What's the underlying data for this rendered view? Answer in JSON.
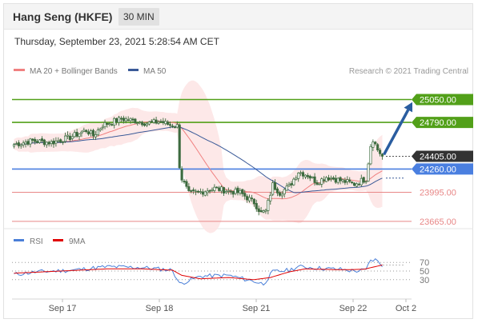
{
  "header": {
    "title": "Hang Seng (HKFE)",
    "timeframe": "30 MIN"
  },
  "datetime": "Thursday, September 23, 2021 5:28:54 AM CET",
  "legend": {
    "ma20_bb_label": "MA 20 + Bollinger Bands",
    "ma50_label": "MA 50",
    "copyright": "Research © 2021 Trading Central"
  },
  "rsi_legend": {
    "rsi_label": "RSI",
    "ma9_label": "9MA"
  },
  "colors": {
    "candle": "#3d6b3f",
    "ma20": "#f08080",
    "ma50": "#3a5a98",
    "bollinger_fill": "#fde4e4",
    "resistance": "#52a019",
    "support": "#e88787",
    "pivot": "#4a7fe0",
    "current": "#333333",
    "arrow": "#2a5da0",
    "rsi": "#4a7fd8",
    "rsi_ma": "#e00000"
  },
  "chart_data": [
    {
      "type": "candlestick",
      "x_ticks": [
        "Sep 17",
        "Sep 18",
        "Sep 21",
        "Sep 22",
        "Oct 2"
      ],
      "ylim": [
        23600,
        25300
      ],
      "price_levels": [
        {
          "value": 25050,
          "label": "25050.00",
          "kind": "resistance"
        },
        {
          "value": 24790,
          "label": "24790.00",
          "kind": "resistance"
        },
        {
          "value": 24405,
          "label": "24405.00",
          "kind": "current"
        },
        {
          "value": 24260,
          "label": "24260.00",
          "kind": "pivot"
        },
        {
          "value": 23995,
          "label": "23995.00",
          "kind": "support"
        },
        {
          "value": 23665,
          "label": "23665.00",
          "kind": "support"
        }
      ],
      "close_anchors": [
        [
          0,
          24540
        ],
        [
          8,
          24580
        ],
        [
          16,
          24560
        ],
        [
          24,
          24620
        ],
        [
          31,
          24700
        ],
        [
          34,
          24640
        ],
        [
          38,
          24760
        ],
        [
          46,
          24830
        ],
        [
          52,
          24810
        ],
        [
          57,
          24780
        ],
        [
          63,
          24800
        ],
        [
          67,
          24760
        ],
        [
          70,
          24750
        ],
        [
          71,
          24300
        ],
        [
          72,
          24150
        ],
        [
          75,
          23980
        ],
        [
          80,
          24000
        ],
        [
          86,
          24040
        ],
        [
          92,
          24010
        ],
        [
          97,
          23990
        ],
        [
          103,
          23880
        ],
        [
          106,
          23760
        ],
        [
          108,
          23780
        ],
        [
          111,
          24080
        ],
        [
          114,
          23990
        ],
        [
          118,
          24060
        ],
        [
          122,
          24230
        ],
        [
          126,
          24190
        ],
        [
          130,
          24110
        ],
        [
          134,
          24170
        ],
        [
          140,
          24130
        ],
        [
          146,
          24090
        ],
        [
          151,
          24150
        ],
        [
          153,
          24530
        ],
        [
          154,
          24600
        ],
        [
          156,
          24480
        ],
        [
          158,
          24405
        ]
      ],
      "arrow_target": 25020
    },
    {
      "type": "line",
      "name": "RSI",
      "ylim": [
        0,
        100
      ],
      "y_ticks": [
        70,
        50,
        30
      ],
      "rsi_anchors": [
        [
          0,
          42
        ],
        [
          10,
          48
        ],
        [
          25,
          52
        ],
        [
          40,
          60
        ],
        [
          55,
          58
        ],
        [
          68,
          52
        ],
        [
          71,
          20
        ],
        [
          74,
          26
        ],
        [
          80,
          38
        ],
        [
          92,
          40
        ],
        [
          103,
          26
        ],
        [
          107,
          20
        ],
        [
          111,
          48
        ],
        [
          118,
          52
        ],
        [
          122,
          60
        ],
        [
          128,
          58
        ],
        [
          135,
          55
        ],
        [
          140,
          54
        ],
        [
          146,
          50
        ],
        [
          151,
          52
        ],
        [
          153,
          75
        ],
        [
          155,
          76
        ],
        [
          158,
          64
        ]
      ],
      "ma_anchors": [
        [
          0,
          45
        ],
        [
          20,
          50
        ],
        [
          40,
          55
        ],
        [
          55,
          55
        ],
        [
          68,
          52
        ],
        [
          72,
          40
        ],
        [
          80,
          32
        ],
        [
          92,
          35
        ],
        [
          103,
          30
        ],
        [
          110,
          35
        ],
        [
          118,
          48
        ],
        [
          125,
          55
        ],
        [
          140,
          53
        ],
        [
          150,
          54
        ],
        [
          158,
          64
        ]
      ]
    }
  ]
}
